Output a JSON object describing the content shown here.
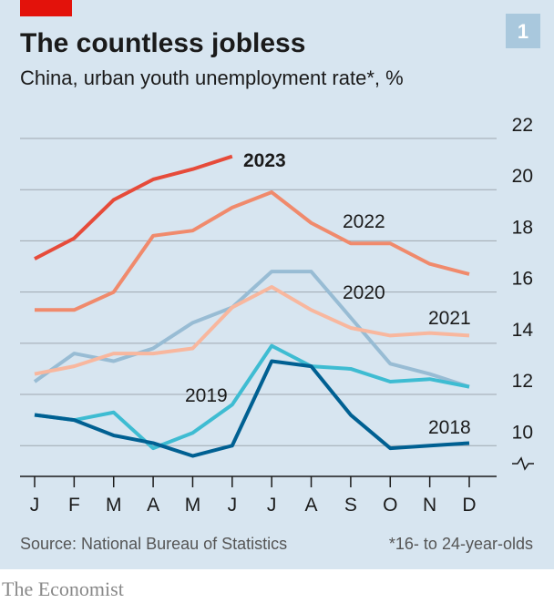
{
  "chart_data": {
    "type": "line",
    "title": "The countless jobless",
    "subtitle": "China, urban youth unemployment rate*, %",
    "tag": "1",
    "source": "Source: National Bureau of Statistics",
    "footnote": "*16- to 24-year-olds",
    "brand": "The Economist",
    "categories": [
      "J",
      "F",
      "M",
      "A",
      "M",
      "J",
      "J",
      "A",
      "S",
      "O",
      "N",
      "D"
    ],
    "series": [
      {
        "name": "2023",
        "color": "#e64b3a",
        "values": [
          17.3,
          18.1,
          19.6,
          20.4,
          20.8,
          21.3,
          null,
          null,
          null,
          null,
          null,
          null
        ]
      },
      {
        "name": "2022",
        "color": "#f08a6c",
        "values": [
          15.3,
          15.3,
          16.0,
          18.2,
          18.4,
          19.3,
          19.9,
          18.7,
          17.9,
          17.9,
          17.1,
          16.7
        ]
      },
      {
        "name": "2020",
        "color": "#98bcd4",
        "values": [
          12.5,
          13.6,
          13.3,
          13.8,
          14.8,
          15.4,
          16.8,
          16.8,
          15.0,
          13.2,
          12.8,
          12.3
        ]
      },
      {
        "name": "2021",
        "color": "#f8b79e",
        "values": [
          12.8,
          13.1,
          13.6,
          13.6,
          13.8,
          15.4,
          16.2,
          15.3,
          14.6,
          14.3,
          14.4,
          14.3
        ]
      },
      {
        "name": "2019",
        "color": "#3ebcd2",
        "values": [
          11.2,
          11.0,
          11.3,
          9.9,
          10.5,
          11.6,
          13.9,
          13.1,
          13.0,
          12.5,
          12.6,
          12.3
        ]
      },
      {
        "name": "2018",
        "color": "#006092",
        "values": [
          11.2,
          11.0,
          10.4,
          10.1,
          9.6,
          10.0,
          13.3,
          13.1,
          11.2,
          9.9,
          10.0,
          10.1
        ]
      }
    ],
    "ylim": [
      8.8,
      22
    ],
    "yticks": [
      10,
      12,
      14,
      16,
      18,
      20,
      22
    ],
    "grid": true
  }
}
